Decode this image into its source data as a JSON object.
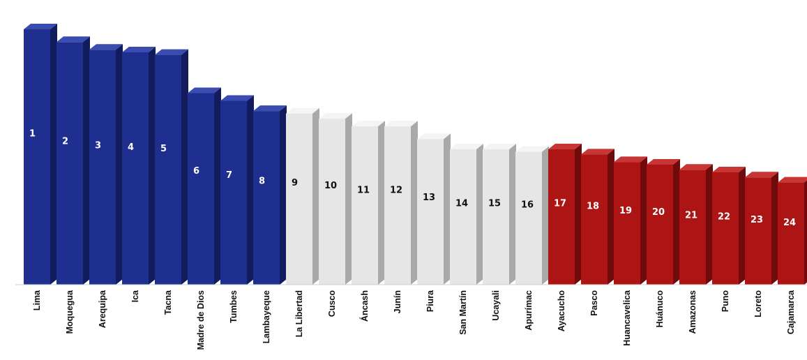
{
  "chart_data": {
    "type": "bar",
    "title": "",
    "xlabel": "",
    "ylabel": "",
    "grid": false,
    "legend": "none",
    "ylim": [
      0,
      100
    ],
    "categories": [
      "Lima",
      "Moquegua",
      "Arequipa",
      "Ica",
      "Tacna",
      "Madre de Dios",
      "Tumbes",
      "Lambayeque",
      "La Libertad",
      "Cusco",
      "Áncash",
      "Junín",
      "Piura",
      "San Martín",
      "Ucayali",
      "Apurímac",
      "Ayacucho",
      "Pasco",
      "Huancavelica",
      "Huánuco",
      "Amazonas",
      "Puno",
      "Loreto",
      "Cajamarca"
    ],
    "ranks": [
      "1",
      "2",
      "3",
      "4",
      "5",
      "6",
      "7",
      "8",
      "9",
      "10",
      "11",
      "12",
      "13",
      "14",
      "15",
      "16",
      "17",
      "18",
      "19",
      "20",
      "21",
      "22",
      "23",
      "24"
    ],
    "values": [
      100,
      95,
      92,
      91,
      90,
      75,
      72,
      68,
      67,
      65,
      62,
      62,
      57,
      53,
      53,
      52,
      53,
      51,
      48,
      47,
      45,
      44,
      42,
      40
    ],
    "groups": [
      "top",
      "top",
      "top",
      "top",
      "top",
      "top",
      "top",
      "top",
      "middle",
      "middle",
      "middle",
      "middle",
      "middle",
      "middle",
      "middle",
      "middle",
      "bottom",
      "bottom",
      "bottom",
      "bottom",
      "bottom",
      "bottom",
      "bottom",
      "bottom"
    ],
    "colors": {
      "top": {
        "front": "#1f2f8f",
        "side": "#111b5e",
        "top": "#3a4cb0",
        "label": "#ffffff"
      },
      "middle": {
        "front": "#e6e6e6",
        "side": "#a9a9a9",
        "top": "#f4f4f4",
        "label": "#111111"
      },
      "bottom": {
        "front": "#ad1515",
        "side": "#700b0b",
        "top": "#c83535",
        "label": "#ffffff"
      }
    }
  }
}
